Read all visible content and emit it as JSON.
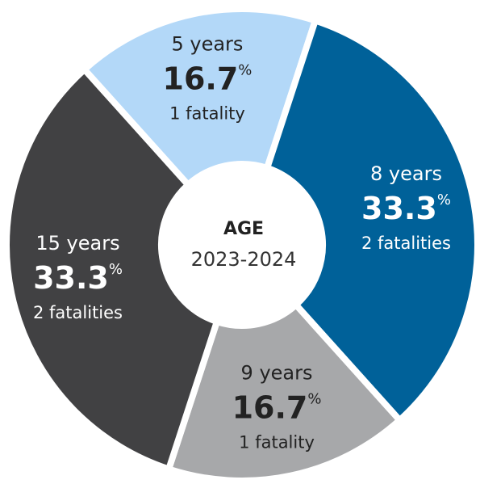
{
  "chart_data": {
    "type": "donut",
    "center_title": "AGE",
    "center_subtitle": "2023-2024",
    "categories": [
      "5 years",
      "8 years",
      "9 years",
      "15 years"
    ],
    "values": [
      16.7,
      33.3,
      16.7,
      33.3
    ],
    "unit": "%",
    "sublabels": [
      "1 fatality",
      "2 fatalities",
      "1 fatality",
      "2 fatalities"
    ],
    "colors": [
      "#b3d8f8",
      "#006199",
      "#a7a8aa",
      "#414143"
    ]
  }
}
